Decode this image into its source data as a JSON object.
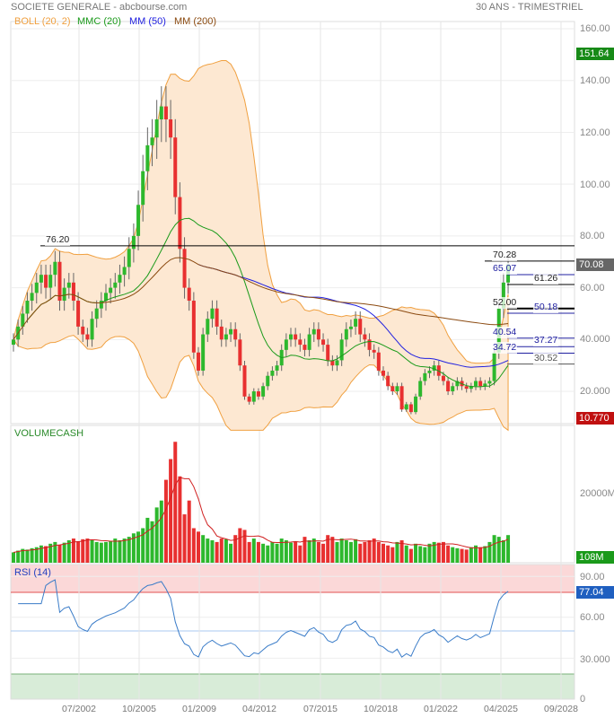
{
  "header": {
    "title": "SOCIETE GENERALE - abcbourse.com",
    "period": "30 ANS - TRIMESTRIEL"
  },
  "legend": [
    {
      "label": "BOLL (20, 2)",
      "color": "#f0a040"
    },
    {
      "label": "MMC (20)",
      "color": "#1a9a1a"
    },
    {
      "label": "MM (50)",
      "color": "#2020e0"
    },
    {
      "label": "MM (200)",
      "color": "#8b4a10"
    }
  ],
  "volume_label": "VOLUMECASH",
  "rsi_label": "RSI (14)",
  "tags": {
    "high": "151.64",
    "last": "70.08",
    "low": "10.770",
    "volume": "108M",
    "rsi": "77.04"
  },
  "colors": {
    "up": "#2db82d",
    "down": "#e83030",
    "band": "#fde8d2",
    "band_edge": "#f0a040",
    "mmc": "#1a9a1a",
    "mm50": "#2020e0",
    "mm200": "#8b4a10",
    "rsi": "#3a7cc8"
  },
  "chart_data": [
    {
      "type": "candlestick",
      "title": "SOCIETE GENERALE",
      "frequency": "quarterly",
      "start": "1999Q1",
      "yaxis_ticks": [
        "160.00",
        "140.00",
        "120.00",
        "100.00",
        "80.00",
        "60.00",
        "40.000",
        "20.000"
      ],
      "ylim": [
        0,
        160
      ],
      "closes": [
        40,
        45,
        50,
        55,
        58,
        62,
        65,
        60,
        65,
        70,
        55,
        60,
        62,
        55,
        45,
        42,
        40,
        48,
        52,
        55,
        58,
        60,
        62,
        65,
        68,
        75,
        80,
        92,
        105,
        115,
        118,
        125,
        130,
        125,
        118,
        95,
        75,
        60,
        55,
        35,
        28,
        42,
        48,
        52,
        45,
        40,
        42,
        44,
        40,
        30,
        18,
        16,
        20,
        18,
        22,
        26,
        28,
        30,
        36,
        40,
        42,
        40,
        38,
        36,
        42,
        44,
        40,
        38,
        32,
        30,
        32,
        40,
        44,
        45,
        48,
        42,
        40,
        36,
        35,
        28,
        26,
        22,
        20,
        22,
        13,
        15,
        12,
        18,
        24,
        27,
        28,
        30,
        26,
        24,
        20,
        22,
        24,
        22,
        21,
        22,
        24,
        22,
        23,
        24,
        35,
        52,
        62,
        69
      ],
      "levels": [
        {
          "value": "76.20",
          "color": "#000"
        },
        {
          "value": "70.28",
          "color": "#000"
        },
        {
          "value": "65.07",
          "color": "#2020a0"
        },
        {
          "value": "61.26",
          "color": "#000"
        },
        {
          "value": "52.00",
          "color": "#000"
        },
        {
          "value": "50.18",
          "color": "#2020a0"
        },
        {
          "value": "40.54",
          "color": "#2020a0"
        },
        {
          "value": "37.27",
          "color": "#2020a0"
        },
        {
          "value": "34.72",
          "color": "#2020a0"
        },
        {
          "value": "30.52",
          "color": "#555"
        }
      ]
    },
    {
      "type": "bar",
      "title": "VOLUMECASH",
      "unit": "M",
      "yaxis_ticks": [
        "20000M"
      ],
      "values": [
        3000,
        3500,
        4000,
        3800,
        4200,
        4500,
        5000,
        4800,
        5500,
        6000,
        5200,
        5800,
        6500,
        7000,
        6200,
        6800,
        7000,
        6500,
        6000,
        5800,
        6000,
        6200,
        7000,
        6500,
        7000,
        7500,
        8500,
        9000,
        10000,
        13000,
        12000,
        16000,
        18000,
        24000,
        30000,
        35000,
        25000,
        14000,
        18000,
        10000,
        9000,
        8000,
        7000,
        6500,
        6000,
        7000,
        6800,
        5500,
        8000,
        10000,
        9500,
        6000,
        7000,
        6000,
        5500,
        5000,
        6000,
        5500,
        7000,
        6500,
        5800,
        6000,
        5000,
        7500,
        6500,
        7000,
        6000,
        5500,
        8000,
        7500,
        6000,
        7000,
        6500,
        6000,
        6800,
        5500,
        6000,
        6500,
        7000,
        6000,
        5500,
        5000,
        4500,
        6000,
        6500,
        5000,
        4000,
        5500,
        4800,
        4500,
        5500,
        6000,
        5800,
        6000,
        5000,
        4500,
        4200,
        4000,
        3800,
        4500,
        5000,
        4500,
        4800,
        6000,
        8000,
        7500,
        6500,
        8000
      ]
    },
    {
      "type": "line",
      "title": "RSI (14)",
      "yaxis_ticks": [
        "90.00",
        "60.00",
        "30.000",
        "0"
      ],
      "ylim": [
        0,
        100
      ],
      "overbought": 80,
      "oversold": 20,
      "mid": 50
    }
  ],
  "xaxis": [
    "07/2002",
    "10/2005",
    "01/2009",
    "04/2012",
    "07/2015",
    "10/2018",
    "01/2022",
    "04/2025",
    "09/2028"
  ]
}
